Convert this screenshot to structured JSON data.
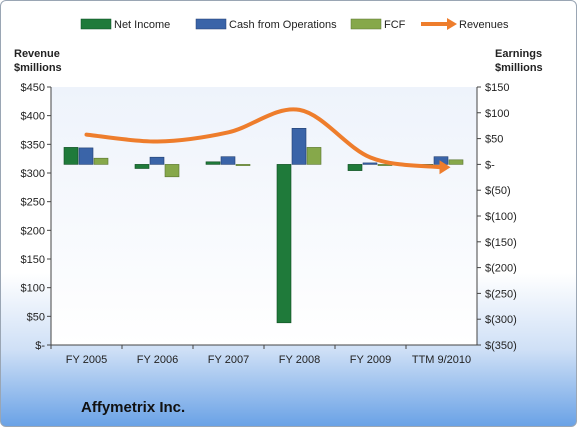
{
  "company": "Affymetrix Inc.",
  "chart_data": {
    "type": "bar+line",
    "categories": [
      "FY 2005",
      "FY 2006",
      "FY 2007",
      "FY 2008",
      "FY 2009",
      "TTM 9/2010"
    ],
    "left_axis": {
      "title_line1": "Revenue",
      "title_line2": "$millions",
      "range": [
        0,
        450
      ],
      "ticks": [
        0,
        50,
        100,
        150,
        200,
        250,
        300,
        350,
        400,
        450
      ],
      "tick_labels": [
        "$-",
        "$50",
        "$100",
        "$150",
        "$200",
        "$250",
        "$300",
        "$350",
        "$400",
        "$450"
      ]
    },
    "right_axis": {
      "title_line1": "Earnings",
      "title_line2": "$millions",
      "range": [
        -350,
        150
      ],
      "ticks": [
        150,
        100,
        50,
        0,
        -50,
        -100,
        -150,
        -200,
        -250,
        -300,
        -350
      ],
      "tick_labels": [
        "$150",
        "$100",
        "$50",
        "$-",
        "$(50)",
        "$(100)",
        "$(150)",
        "$(200)",
        "$(250)",
        "$(300)",
        "$(350)"
      ]
    },
    "series": [
      {
        "name": "Net Income",
        "type": "bar",
        "axis": "right",
        "color": "#1f7a3a",
        "values": [
          33,
          -8,
          5,
          -307,
          -12,
          -3
        ]
      },
      {
        "name": "Cash from Operations",
        "type": "bar",
        "axis": "right",
        "color": "#3a64a8",
        "values": [
          32,
          14,
          15,
          70,
          3,
          15
        ]
      },
      {
        "name": "FCF",
        "type": "bar",
        "axis": "right",
        "color": "#86a84a",
        "values": [
          12,
          -24,
          0,
          33,
          -1,
          9
        ]
      },
      {
        "name": "Revenues",
        "type": "line",
        "axis": "left",
        "color": "#ee7d2c",
        "values": [
          367,
          355,
          371,
          410,
          327,
          310
        ]
      }
    ],
    "legend_position": "top",
    "grid": false
  }
}
